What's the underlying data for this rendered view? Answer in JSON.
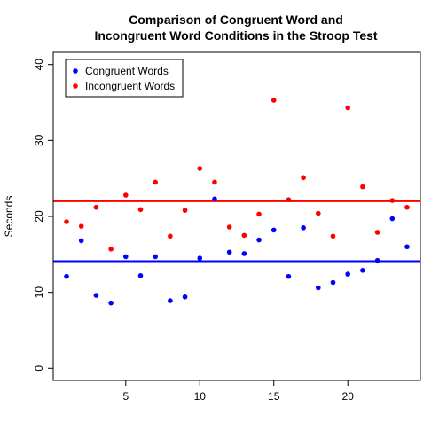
{
  "chart_data": {
    "type": "scatter",
    "title_line1": "Comparison of Congruent Word and",
    "title_line2": "Incongruent Word Conditions in the Stroop Test",
    "xlabel": "",
    "ylabel": "Seconds",
    "xlim": [
      0.1,
      24.9
    ],
    "ylim": [
      -1.6,
      41.6
    ],
    "x_ticks": [
      5,
      10,
      15,
      20
    ],
    "y_ticks": [
      0,
      10,
      20,
      30,
      40
    ],
    "legend_position": "top-left",
    "series": [
      {
        "name": "Congruent Words",
        "color": "#0000ff",
        "x": [
          1,
          2,
          3,
          4,
          5,
          6,
          7,
          8,
          9,
          10,
          11,
          12,
          13,
          14,
          15,
          16,
          17,
          18,
          19,
          20,
          21,
          22,
          23,
          24
        ],
        "values": [
          12.1,
          16.8,
          9.6,
          8.6,
          14.7,
          12.2,
          14.7,
          8.9,
          9.4,
          14.5,
          22.3,
          15.3,
          15.1,
          16.9,
          18.2,
          12.1,
          18.5,
          10.6,
          11.3,
          12.4,
          12.9,
          14.2,
          19.7,
          16.0
        ]
      },
      {
        "name": "Incongruent Words",
        "color": "#ff0000",
        "x": [
          1,
          2,
          3,
          4,
          5,
          6,
          7,
          8,
          9,
          10,
          11,
          12,
          13,
          14,
          15,
          16,
          17,
          18,
          19,
          20,
          21,
          22,
          23,
          24
        ],
        "values": [
          19.3,
          18.7,
          21.2,
          15.7,
          22.8,
          20.9,
          24.5,
          17.4,
          20.8,
          26.3,
          24.5,
          18.6,
          17.5,
          20.3,
          35.3,
          22.2,
          25.1,
          20.4,
          17.4,
          34.3,
          23.9,
          17.9,
          22.1,
          21.2
        ]
      }
    ],
    "hlines": [
      {
        "y": 14.1,
        "color": "#0000ff"
      },
      {
        "y": 22.0,
        "color": "#ff0000"
      }
    ]
  }
}
